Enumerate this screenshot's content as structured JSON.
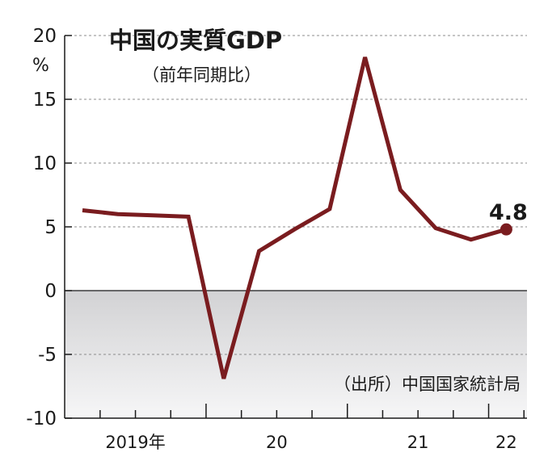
{
  "chart_data": {
    "type": "line",
    "title": "中国の実質GDP",
    "subtitle": "（前年同期比）",
    "ylabel": "%",
    "ylim": [
      -10,
      20
    ],
    "yticks": [
      20,
      15,
      10,
      5,
      0,
      -5,
      -10
    ],
    "ytick_labels": [
      "20",
      "15",
      "10",
      "5",
      "0",
      "-5",
      "-10"
    ],
    "grid": true,
    "negative_region_shaded": true,
    "line_color": "#7a1c1f",
    "x_labels": [
      "2019年",
      "20",
      "21",
      "22"
    ],
    "x": [
      "2019Q1",
      "2019Q2",
      "2019Q3",
      "2019Q4",
      "2020Q1",
      "2020Q2",
      "2020Q3",
      "2020Q4",
      "2021Q1",
      "2021Q2",
      "2021Q3",
      "2021Q4",
      "2022Q1"
    ],
    "series": [
      {
        "values": [
          6.3,
          6.0,
          5.9,
          5.8,
          -6.9,
          3.1,
          4.8,
          6.4,
          18.3,
          7.9,
          4.9,
          4.0,
          4.8
        ]
      }
    ],
    "last_value_label": "4.8",
    "source": "（出所）中国国家統計局"
  }
}
